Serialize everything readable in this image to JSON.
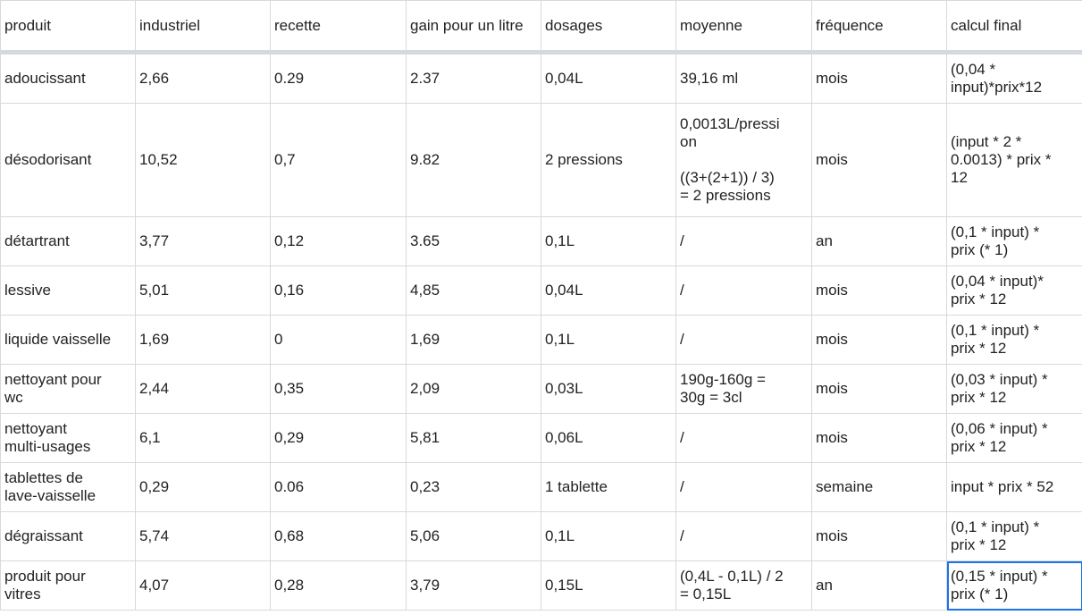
{
  "sheet": {
    "headers": [
      "produit",
      "industriel",
      "recette",
      "gain pour un litre",
      "dosages",
      "moyenne",
      "fréquence",
      "calcul final"
    ],
    "rows": [
      [
        "adoucissant",
        "2,66",
        "0.29",
        "2.37",
        "0,04L",
        "39,16 ml",
        "mois",
        "(0,04 *\ninput)*prix*12"
      ],
      [
        "désodorisant",
        "10,52",
        "0,7",
        "9.82",
        "2 pressions",
        "0,0013L/pressi\non\n\n((3+(2+1)) / 3)\n= 2 pressions",
        "mois",
        "(input * 2 *\n0.0013) * prix *\n12"
      ],
      [
        "détartrant",
        "3,77",
        "0,12",
        "3.65",
        "0,1L",
        "/",
        "an",
        "(0,1 * input) *\nprix (* 1)"
      ],
      [
        "lessive",
        "5,01",
        "0,16",
        "4,85",
        "0,04L",
        "/",
        "mois",
        "(0,04 * input)*\nprix * 12"
      ],
      [
        "liquide vaisselle",
        "1,69",
        "0",
        "1,69",
        "0,1L",
        "/",
        "mois",
        "(0,1 * input) *\nprix * 12"
      ],
      [
        "nettoyant pour\nwc",
        "2,44",
        "0,35",
        "2,09",
        "0,03L",
        "190g-160g =\n30g = 3cl",
        "mois",
        "(0,03 * input) *\nprix * 12"
      ],
      [
        "nettoyant\nmulti-usages",
        "6,1",
        "0,29",
        "5,81",
        "0,06L",
        "/",
        "mois",
        "(0,06 * input) *\nprix * 12"
      ],
      [
        "tablettes de\nlave-vaisselle",
        "0,29",
        "0.06",
        "0,23",
        "1 tablette",
        "/",
        "semaine",
        "input * prix * 52"
      ],
      [
        "dégraissant",
        "5,74",
        "0,68",
        "5,06",
        "0,1L",
        "/",
        "mois",
        "(0,1 * input) *\nprix * 12"
      ],
      [
        "produit pour\nvitres",
        "4,07",
        "0,28",
        "3,79",
        "0,15L",
        "(0,4L - 0,1L) / 2\n= 0,15L",
        "an",
        "(0,15 * input) *\nprix (* 1)"
      ]
    ],
    "selected_cell": {
      "row": 9,
      "col": 7
    },
    "colors": {
      "grid": "#d9d9d9",
      "header_separator": "#d4d9e0",
      "selection": "#1a73e8",
      "text": "#222222"
    }
  }
}
